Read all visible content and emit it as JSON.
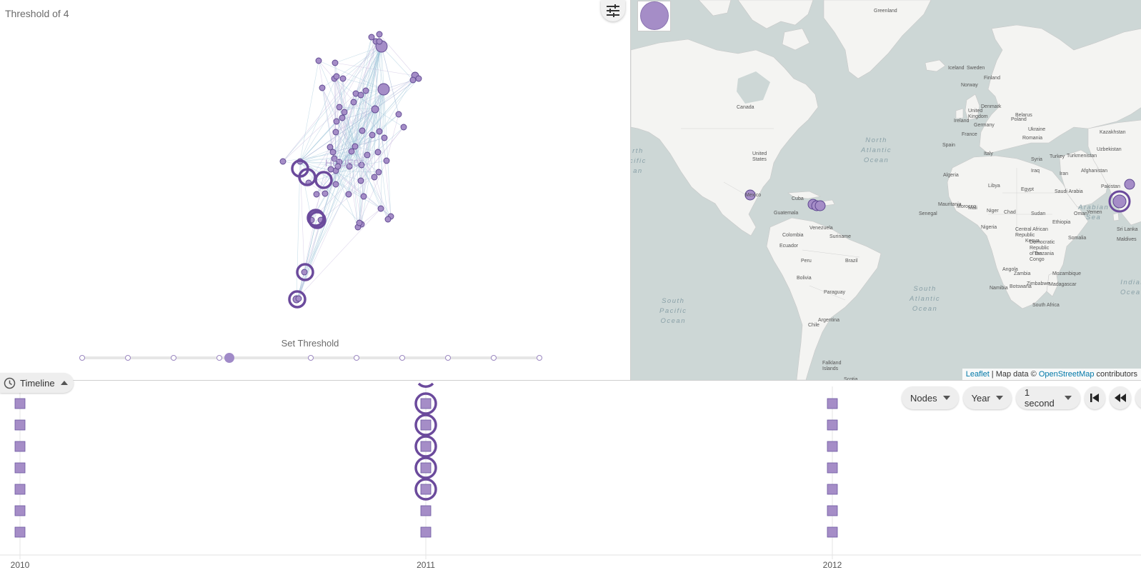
{
  "network": {
    "threshold_title": "Threshold of 4",
    "node_label": "HCUE01",
    "slider_label": "Set Threshold",
    "slider": {
      "tick_count": 11,
      "selected_index": 4
    }
  },
  "map": {
    "attribution_leaflet": "Leaflet",
    "attribution_middle": " | Map data © ",
    "attribution_osm": "OpenStreetMap",
    "attribution_tail": " contributors",
    "ocean_labels": [
      "North\nAtlantic\nOcean",
      "South\nPacific\nOcean",
      "South\nAtlantic\nOcean",
      "Arabian\nSea",
      "Indian\nOcean",
      "rth\ncific\nan"
    ],
    "country_labels": [
      "Greenland",
      "Iceland",
      "Canada",
      "United\nStates",
      "Mexico",
      "Cuba",
      "Guatemala",
      "Venezuela",
      "Colombia",
      "Suriname",
      "Ecuador",
      "Peru",
      "Brazil",
      "Bolivia",
      "Paraguay",
      "Chile",
      "Argentina",
      "Falkland\nIslands",
      "Sweden",
      "Finland",
      "Norway",
      "United\nKingdom",
      "Ireland",
      "Denmark",
      "Poland",
      "Belarus",
      "Ukraine",
      "Germany",
      "France",
      "Spain",
      "Italy",
      "Romania",
      "Turkey",
      "Kazakhstan",
      "Uzbekistan",
      "Turkmenistan",
      "Afghanistan",
      "Pakistan",
      "Iran",
      "Iraq",
      "Syria",
      "Saudi Arabia",
      "Egypt",
      "Libya",
      "Algeria",
      "Morocco",
      "Mali",
      "Niger",
      "Chad",
      "Sudan",
      "Mauritania",
      "Senegal",
      "Nigeria",
      "Ethiopia",
      "Kenya",
      "Tanzania",
      "Angola",
      "Zambia",
      "Zimbabwe",
      "Namibia",
      "Botswana",
      "South Africa",
      "Madagascar",
      "Democratic\nRepublic\nof the\nCongo",
      "Central African\nRepublic",
      "Oman",
      "Yemen",
      "Somalia",
      "Sri Lanka",
      "Maldives",
      "Scotia",
      "Mozambique"
    ],
    "north_atlantic_label": "North Atlantic Ocean"
  },
  "timeline": {
    "tab_label": "Timeline",
    "years": [
      "2010",
      "2011",
      "2012"
    ],
    "dropdowns": [
      {
        "name": "nodes",
        "label": "Nodes"
      },
      {
        "name": "year",
        "label": "Year"
      },
      {
        "name": "speed",
        "label": "1 second"
      }
    ],
    "rows_per_year": 7,
    "highlighted_rows_2011": 5
  },
  "colors": {
    "node_fill": "#a58dc7",
    "node_stroke": "#5d4790",
    "highlight_ring": "#6b4a9c",
    "edge": "#9fc4d8",
    "land": "#f5f5f3",
    "water": "#cdd7d6"
  },
  "icons": {
    "settings": "sliders-icon",
    "timeline": "clock-icon",
    "first": "skip-to-start-icon",
    "rewind": "rewind-icon"
  }
}
